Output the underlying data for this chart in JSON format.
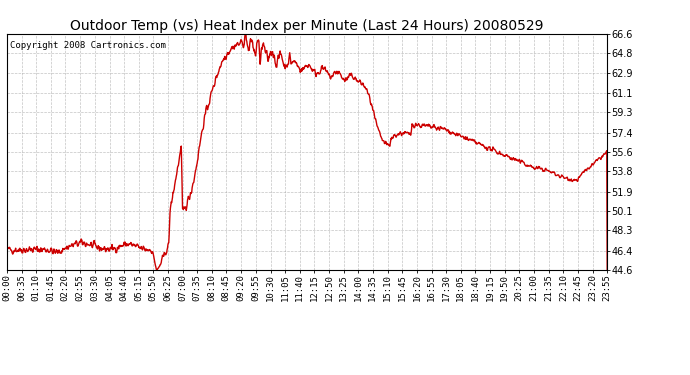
{
  "title": "Outdoor Temp (vs) Heat Index per Minute (Last 24 Hours) 20080529",
  "copyright_text": "Copyright 2008 Cartronics.com",
  "line_color": "#cc0000",
  "background_color": "#ffffff",
  "plot_bg_color": "#ffffff",
  "grid_color": "#aaaaaa",
  "ylim": [
    44.6,
    66.6
  ],
  "yticks": [
    44.6,
    46.4,
    48.3,
    50.1,
    51.9,
    53.8,
    55.6,
    57.4,
    59.3,
    61.1,
    62.9,
    64.8,
    66.6
  ],
  "xtick_labels": [
    "00:00",
    "00:35",
    "01:10",
    "01:45",
    "02:20",
    "02:55",
    "03:30",
    "04:05",
    "04:40",
    "05:15",
    "05:50",
    "06:25",
    "07:00",
    "07:35",
    "08:10",
    "08:45",
    "09:20",
    "09:55",
    "10:30",
    "11:05",
    "11:40",
    "12:15",
    "12:50",
    "13:25",
    "14:00",
    "14:35",
    "15:10",
    "15:45",
    "16:20",
    "16:55",
    "17:30",
    "18:05",
    "18:40",
    "19:15",
    "19:50",
    "20:25",
    "21:00",
    "21:35",
    "22:10",
    "22:45",
    "23:20",
    "23:55"
  ],
  "line_width": 1.0,
  "title_fontsize": 10,
  "tick_fontsize": 7,
  "copyright_fontsize": 6.5
}
